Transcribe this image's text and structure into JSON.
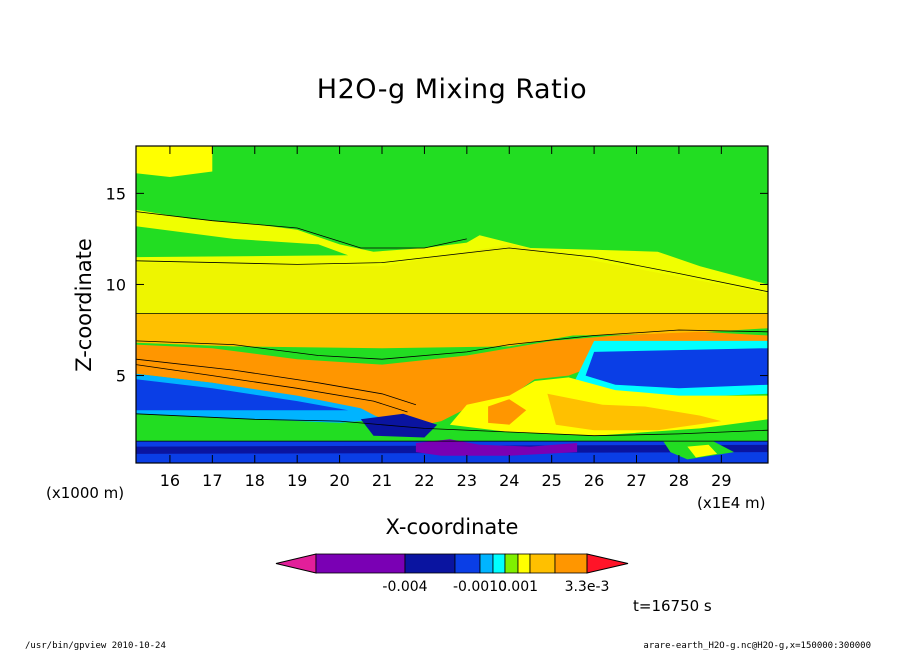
{
  "chart_data": {
    "type": "heatmap",
    "title": "H2O-g Mixing Ratio",
    "xlabel": "X-coordinate",
    "ylabel": "Z-coordinate",
    "x_unit_label": "(x1000 m)",
    "x_scale_label": "(x1E4 m)",
    "xlim": [
      15.2,
      30.1
    ],
    "ylim": [
      0.2,
      17.6
    ],
    "x_ticks": [
      16,
      17,
      18,
      19,
      20,
      21,
      22,
      23,
      24,
      25,
      26,
      27,
      28,
      29
    ],
    "y_ticks": [
      5,
      10,
      15
    ],
    "colorbar": {
      "colors": [
        "#e21f9a",
        "#7a00b4",
        "#0a14a0",
        "#0a3ee6",
        "#00b4ff",
        "#00ffff",
        "#7ff000",
        "#ffff00",
        "#ffc000",
        "#ff9600",
        "#ff5a00",
        "#ff1428"
      ],
      "labels": [
        "-0.004",
        "-0.0010",
        "0.001",
        "3.3e-3"
      ]
    },
    "regions": [
      {
        "color": "#22dd22",
        "points": [
          [
            15.2,
            17.6
          ],
          [
            30.1,
            17.6
          ],
          [
            30.1,
            0.2
          ],
          [
            15.2,
            0.2
          ]
        ]
      },
      {
        "color": "#ffff00",
        "points": [
          [
            15.2,
            17.6
          ],
          [
            17.0,
            17.6
          ],
          [
            17.0,
            16.2
          ],
          [
            16.0,
            15.9
          ],
          [
            15.2,
            16.1
          ]
        ]
      },
      {
        "color": "#f0ff00",
        "points": [
          [
            15.2,
            14.1
          ],
          [
            16.5,
            13.6
          ],
          [
            18.0,
            13.3
          ],
          [
            19.0,
            13.0
          ],
          [
            20.0,
            12.2
          ],
          [
            20.8,
            11.8
          ],
          [
            22.0,
            12.0
          ],
          [
            23.0,
            12.3
          ],
          [
            23.3,
            12.7
          ],
          [
            24.5,
            12.0
          ],
          [
            26.0,
            11.9
          ],
          [
            27.5,
            11.8
          ],
          [
            28.5,
            11.0
          ],
          [
            30.1,
            10.0
          ],
          [
            30.1,
            8.4
          ],
          [
            15.2,
            8.4
          ]
        ]
      },
      {
        "color": "#22dd22",
        "points": [
          [
            15.2,
            13.2
          ],
          [
            17.5,
            12.5
          ],
          [
            19.5,
            12.2
          ],
          [
            20.2,
            11.6
          ],
          [
            15.2,
            11.5
          ]
        ]
      },
      {
        "color": "#eef500",
        "points": [
          [
            15.2,
            11.2
          ],
          [
            21.0,
            11.0
          ],
          [
            24.0,
            12.2
          ],
          [
            26.0,
            11.3
          ],
          [
            30.1,
            9.5
          ],
          [
            30.1,
            8.4
          ],
          [
            15.2,
            8.4
          ]
        ]
      },
      {
        "color": "#ffc000",
        "points": [
          [
            15.2,
            8.4
          ],
          [
            30.1,
            8.4
          ],
          [
            30.1,
            7.6
          ],
          [
            28.0,
            7.3
          ],
          [
            25.5,
            7.2
          ],
          [
            24.0,
            6.6
          ],
          [
            21.0,
            6.5
          ],
          [
            17.5,
            6.6
          ],
          [
            15.2,
            6.8
          ]
        ]
      },
      {
        "color": "#ff9600",
        "points": [
          [
            15.2,
            6.7
          ],
          [
            17.0,
            6.5
          ],
          [
            19.0,
            5.9
          ],
          [
            21.0,
            5.6
          ],
          [
            23.0,
            6.1
          ],
          [
            24.0,
            6.5
          ],
          [
            25.0,
            6.9
          ],
          [
            26.5,
            7.2
          ],
          [
            28.5,
            7.4
          ],
          [
            30.1,
            7.2
          ],
          [
            30.1,
            6.9
          ],
          [
            27.0,
            6.4
          ],
          [
            25.4,
            5.0
          ],
          [
            24.6,
            4.8
          ],
          [
            24.0,
            3.8
          ],
          [
            23.0,
            3.2
          ],
          [
            22.4,
            2.5
          ],
          [
            21.8,
            2.2
          ],
          [
            21.1,
            2.6
          ],
          [
            20.0,
            3.4
          ],
          [
            19.0,
            3.8
          ],
          [
            17.0,
            4.6
          ],
          [
            15.2,
            5.1
          ]
        ]
      },
      {
        "color": "#00b4ff",
        "points": [
          [
            15.2,
            5.1
          ],
          [
            17.0,
            4.6
          ],
          [
            19.0,
            3.9
          ],
          [
            20.5,
            3.2
          ],
          [
            21.0,
            2.6
          ],
          [
            20.0,
            2.4
          ],
          [
            18.5,
            2.5
          ],
          [
            16.5,
            2.7
          ],
          [
            15.2,
            2.9
          ]
        ]
      },
      {
        "color": "#0a3ee6",
        "points": [
          [
            15.2,
            4.8
          ],
          [
            17.0,
            4.3
          ],
          [
            19.0,
            3.6
          ],
          [
            20.2,
            3.1
          ],
          [
            15.2,
            3.1
          ]
        ]
      },
      {
        "color": "#00ffff",
        "points": [
          [
            26.0,
            6.9
          ],
          [
            30.1,
            6.9
          ],
          [
            30.1,
            4.0
          ],
          [
            28.0,
            3.8
          ],
          [
            26.5,
            4.1
          ],
          [
            25.5,
            4.5
          ]
        ]
      },
      {
        "color": "#0a3ee6",
        "points": [
          [
            26.0,
            6.3
          ],
          [
            30.1,
            6.5
          ],
          [
            30.1,
            4.5
          ],
          [
            28.0,
            4.3
          ],
          [
            26.5,
            4.5
          ],
          [
            25.8,
            5.0
          ]
        ]
      },
      {
        "color": "#ffff00",
        "points": [
          [
            23.0,
            3.4
          ],
          [
            24.0,
            3.9
          ],
          [
            24.6,
            4.7
          ],
          [
            25.4,
            4.9
          ],
          [
            26.5,
            4.2
          ],
          [
            28.0,
            3.9
          ],
          [
            30.1,
            3.9
          ],
          [
            30.1,
            2.6
          ],
          [
            28.5,
            2.1
          ],
          [
            26.0,
            1.7
          ],
          [
            24.0,
            1.9
          ],
          [
            22.6,
            2.3
          ]
        ]
      },
      {
        "color": "#ffc000",
        "points": [
          [
            24.9,
            4.0
          ],
          [
            26.2,
            3.4
          ],
          [
            27.2,
            3.3
          ],
          [
            28.5,
            2.8
          ],
          [
            29.0,
            2.5
          ],
          [
            27.5,
            2.0
          ],
          [
            26.0,
            2.0
          ],
          [
            25.1,
            2.3
          ]
        ]
      },
      {
        "color": "#ff9600",
        "points": [
          [
            23.5,
            3.3
          ],
          [
            24.0,
            3.7
          ],
          [
            24.4,
            3.1
          ],
          [
            24.0,
            2.3
          ],
          [
            23.5,
            2.4
          ]
        ]
      },
      {
        "color": "#22dd22",
        "points": [
          [
            15.2,
            2.9
          ],
          [
            20.0,
            2.4
          ],
          [
            21.5,
            2.2
          ],
          [
            23.5,
            1.9
          ],
          [
            26.0,
            1.6
          ],
          [
            30.1,
            1.8
          ],
          [
            30.1,
            1.4
          ],
          [
            15.2,
            1.4
          ]
        ]
      },
      {
        "color": "#0a3ee6",
        "points": [
          [
            15.2,
            1.4
          ],
          [
            30.1,
            1.4
          ],
          [
            30.1,
            0.2
          ],
          [
            15.2,
            0.2
          ]
        ]
      },
      {
        "color": "#0a14a0",
        "points": [
          [
            15.2,
            1.1
          ],
          [
            30.1,
            1.2
          ],
          [
            30.1,
            0.8
          ],
          [
            15.2,
            0.7
          ]
        ]
      },
      {
        "color": "#0a14a0",
        "points": [
          [
            20.5,
            2.6
          ],
          [
            21.5,
            2.9
          ],
          [
            22.3,
            2.3
          ],
          [
            22.0,
            1.6
          ],
          [
            20.8,
            1.7
          ]
        ]
      },
      {
        "color": "#7a00b4",
        "points": [
          [
            21.8,
            1.3
          ],
          [
            22.6,
            1.5
          ],
          [
            23.3,
            1.2
          ],
          [
            24.5,
            1.1
          ],
          [
            25.6,
            1.3
          ],
          [
            25.6,
            0.8
          ],
          [
            24.0,
            0.6
          ],
          [
            22.4,
            0.6
          ],
          [
            21.8,
            0.8
          ]
        ]
      },
      {
        "color": "#22dd22",
        "points": [
          [
            27.6,
            1.5
          ],
          [
            28.8,
            1.4
          ],
          [
            29.3,
            0.8
          ],
          [
            28.2,
            0.4
          ],
          [
            27.8,
            0.8
          ]
        ]
      },
      {
        "color": "#ffff00",
        "points": [
          [
            28.2,
            1.1
          ],
          [
            28.7,
            1.2
          ],
          [
            28.9,
            0.7
          ],
          [
            28.4,
            0.5
          ]
        ]
      }
    ],
    "contours": [
      [
        [
          15.2,
          8.4
        ],
        [
          30.1,
          8.4
        ]
      ],
      [
        [
          15.2,
          6.9
        ],
        [
          17.5,
          6.7
        ],
        [
          19.5,
          6.1
        ],
        [
          21.0,
          5.9
        ],
        [
          23.0,
          6.3
        ],
        [
          24.0,
          6.7
        ],
        [
          26.0,
          7.2
        ],
        [
          28.0,
          7.5
        ],
        [
          30.1,
          7.4
        ]
      ],
      [
        [
          15.2,
          5.9
        ],
        [
          17.5,
          5.3
        ],
        [
          19.5,
          4.6
        ],
        [
          21.0,
          4.0
        ],
        [
          21.8,
          3.4
        ]
      ],
      [
        [
          15.2,
          5.6
        ],
        [
          17.0,
          5.0
        ],
        [
          19.0,
          4.3
        ],
        [
          20.8,
          3.6
        ],
        [
          21.6,
          3.0
        ]
      ],
      [
        [
          15.2,
          11.3
        ],
        [
          19.0,
          11.1
        ],
        [
          21.0,
          11.2
        ],
        [
          24.0,
          12.0
        ],
        [
          26.0,
          11.5
        ],
        [
          28.0,
          10.6
        ],
        [
          30.1,
          9.6
        ]
      ],
      [
        [
          15.2,
          14.0
        ],
        [
          17.0,
          13.5
        ],
        [
          19.0,
          13.1
        ],
        [
          20.5,
          12.0
        ],
        [
          22.0,
          12.0
        ],
        [
          23.0,
          12.5
        ]
      ],
      [
        [
          15.2,
          2.9
        ],
        [
          18.0,
          2.6
        ],
        [
          20.0,
          2.5
        ],
        [
          22.0,
          2.1
        ],
        [
          24.0,
          1.9
        ],
        [
          26.0,
          1.7
        ],
        [
          28.0,
          1.8
        ],
        [
          30.1,
          2.0
        ]
      ],
      [
        [
          15.2,
          1.4
        ],
        [
          30.1,
          1.4
        ]
      ]
    ]
  },
  "timestamp": "t=16750 s",
  "footer": {
    "left": "/usr/bin/gpview   2010-10-24",
    "right": "arare-earth_H2O-g.nc@H2O-g,x=150000:300000"
  }
}
